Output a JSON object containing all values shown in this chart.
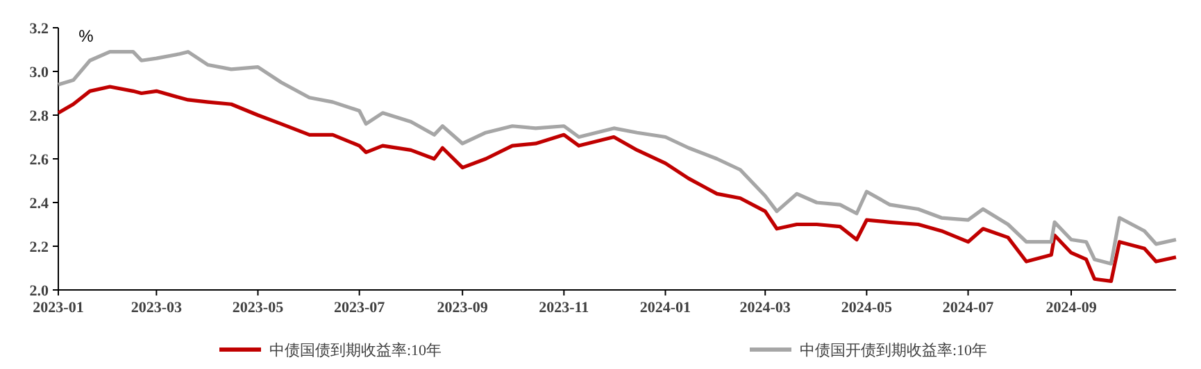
{
  "chart_data": {
    "type": "line",
    "ylabel": "%",
    "legend": "bottom",
    "grid": false,
    "line_style": "solid",
    "x": [
      "2023-01-01",
      "2023-01-10",
      "2023-01-20",
      "2023-02-01",
      "2023-02-15",
      "2023-02-20",
      "2023-03-01",
      "2023-03-15",
      "2023-03-20",
      "2023-04-01",
      "2023-04-15",
      "2023-05-01",
      "2023-05-15",
      "2023-06-01",
      "2023-06-15",
      "2023-07-01",
      "2023-07-05",
      "2023-07-15",
      "2023-08-01",
      "2023-08-15",
      "2023-08-20",
      "2023-09-01",
      "2023-09-15",
      "2023-10-01",
      "2023-10-15",
      "2023-11-01",
      "2023-11-10",
      "2023-12-01",
      "2023-12-15",
      "2024-01-01",
      "2024-01-15",
      "2024-02-01",
      "2024-02-15",
      "2024-03-01",
      "2024-03-08",
      "2024-03-20",
      "2024-04-01",
      "2024-04-15",
      "2024-04-25",
      "2024-05-01",
      "2024-05-15",
      "2024-06-01",
      "2024-06-15",
      "2024-07-01",
      "2024-07-10",
      "2024-07-25",
      "2024-08-05",
      "2024-08-20",
      "2024-08-22",
      "2024-09-01",
      "2024-09-10",
      "2024-09-15",
      "2024-09-25",
      "2024-09-30",
      "2024-10-15",
      "2024-10-22",
      "2024-11-03"
    ],
    "series": [
      {
        "name": "中债国债到期收益率:10年",
        "color": "#c00000",
        "values": [
          2.81,
          2.85,
          2.91,
          2.93,
          2.91,
          2.9,
          2.91,
          2.88,
          2.87,
          2.86,
          2.85,
          2.8,
          2.76,
          2.71,
          2.71,
          2.66,
          2.63,
          2.66,
          2.64,
          2.6,
          2.65,
          2.56,
          2.6,
          2.66,
          2.67,
          2.71,
          2.66,
          2.7,
          2.64,
          2.58,
          2.51,
          2.44,
          2.42,
          2.36,
          2.28,
          2.3,
          2.3,
          2.29,
          2.23,
          2.32,
          2.31,
          2.3,
          2.27,
          2.22,
          2.28,
          2.24,
          2.13,
          2.16,
          2.25,
          2.17,
          2.14,
          2.05,
          2.04,
          2.22,
          2.19,
          2.13,
          2.15
        ]
      },
      {
        "name": "中债国开债到期收益率:10年",
        "color": "#a6a6a6",
        "values": [
          2.94,
          2.96,
          3.05,
          3.09,
          3.09,
          3.05,
          3.06,
          3.08,
          3.09,
          3.03,
          3.01,
          3.02,
          2.95,
          2.88,
          2.86,
          2.82,
          2.76,
          2.81,
          2.77,
          2.71,
          2.75,
          2.67,
          2.72,
          2.75,
          2.74,
          2.75,
          2.7,
          2.74,
          2.72,
          2.7,
          2.65,
          2.6,
          2.55,
          2.43,
          2.36,
          2.44,
          2.4,
          2.39,
          2.35,
          2.45,
          2.39,
          2.37,
          2.33,
          2.32,
          2.37,
          2.3,
          2.22,
          2.22,
          2.31,
          2.23,
          2.22,
          2.14,
          2.12,
          2.33,
          2.27,
          2.21,
          2.23
        ]
      }
    ],
    "xlim": [
      "2023-01-01",
      "2024-11-03"
    ],
    "xticks": [
      {
        "value": "2023-01",
        "label": "2023-01"
      },
      {
        "value": "2023-03",
        "label": "2023-03"
      },
      {
        "value": "2023-05",
        "label": "2023-05"
      },
      {
        "value": "2023-07",
        "label": "2023-07"
      },
      {
        "value": "2023-09",
        "label": "2023-09"
      },
      {
        "value": "2023-11",
        "label": "2023-11"
      },
      {
        "value": "2024-01",
        "label": "2024-01"
      },
      {
        "value": "2024-03",
        "label": "2024-03"
      },
      {
        "value": "2024-05",
        "label": "2024-05"
      },
      {
        "value": "2024-07",
        "label": "2024-07"
      },
      {
        "value": "2024-09",
        "label": "2024-09"
      }
    ],
    "ylim": [
      2.0,
      3.2
    ],
    "yticks": [
      {
        "value": 2,
        "label": "2.0"
      },
      2.2,
      2.4,
      2.6,
      2.8,
      {
        "value": 3,
        "label": "3.0"
      },
      3.2
    ]
  }
}
